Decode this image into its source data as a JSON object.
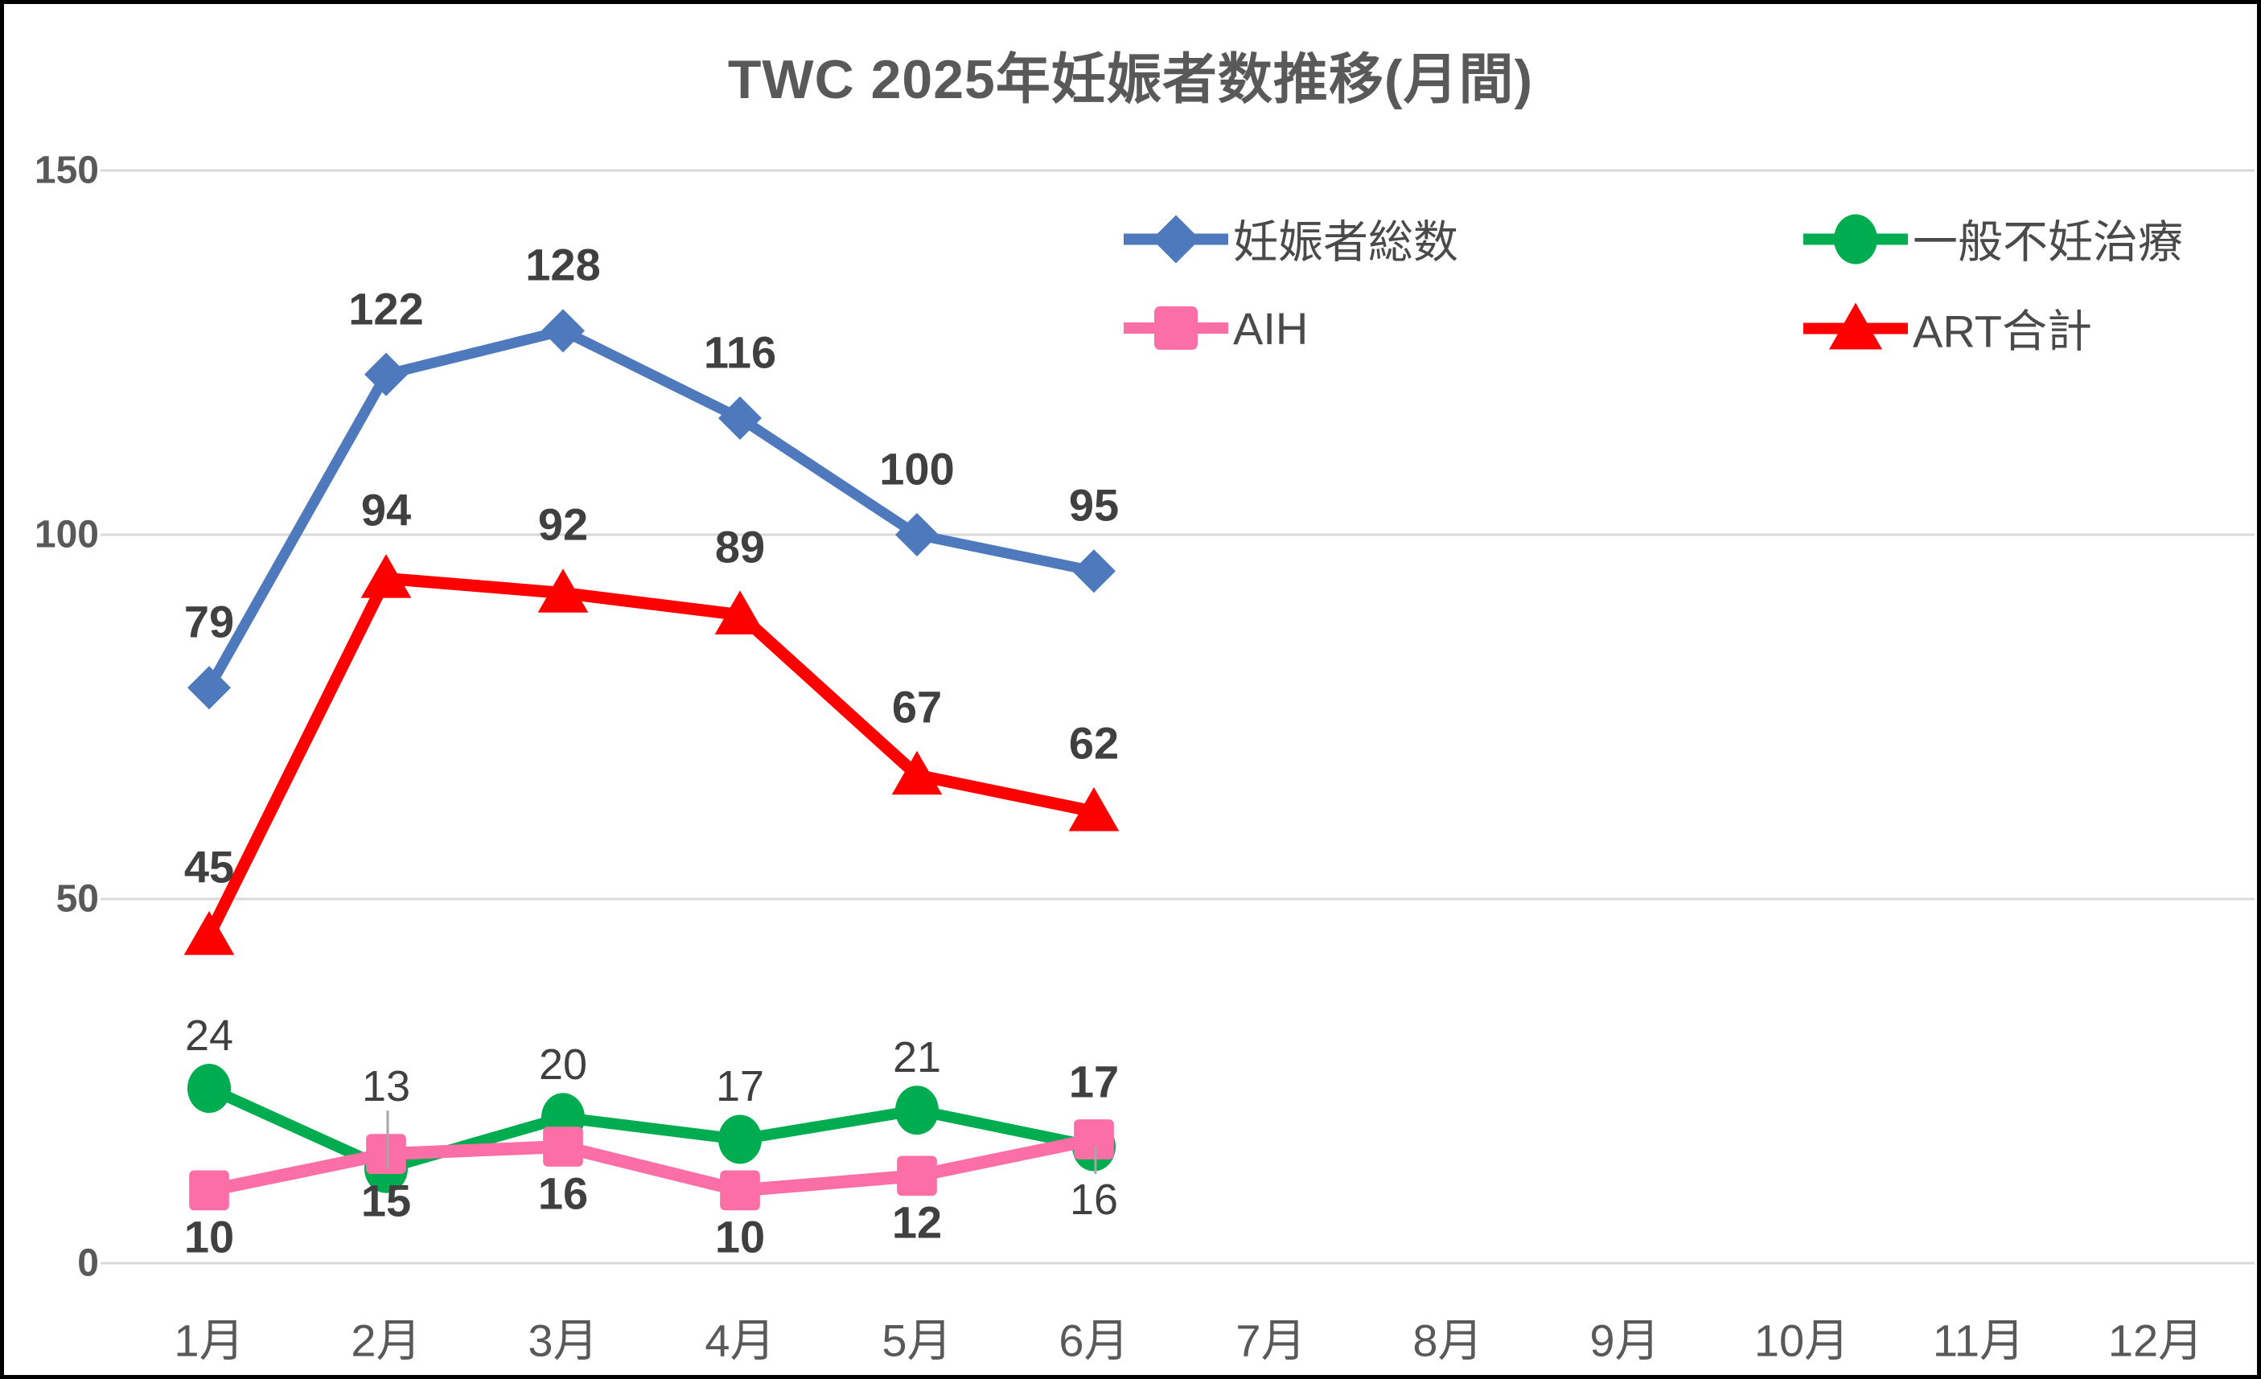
{
  "title": "TWC 2025年妊娠者数推移(月間)",
  "colors": {
    "background": "#FFFFFF",
    "border": "#000000",
    "title_text": "#595959",
    "axis_text": "#595959",
    "data_label_text": "#404040",
    "gridline": "#D9D9D9",
    "leader_line": "#A6A6A6"
  },
  "chart_data": {
    "type": "line",
    "title": "TWC 2025年妊娠者数推移(月間)",
    "categories": [
      "1月",
      "2月",
      "3月",
      "4月",
      "5月",
      "6月",
      "7月",
      "8月",
      "9月",
      "10月",
      "11月",
      "12月"
    ],
    "ylim": [
      0,
      150
    ],
    "yticks": [
      0,
      50,
      100,
      150
    ],
    "grid": true,
    "legend_position": "inside-top-right-two-columns",
    "series": [
      {
        "key": "total",
        "name": "妊娠者総数",
        "color": "#4E79BD",
        "marker": "diamond",
        "label_weight": "bold",
        "label_default_pos": "above",
        "values": [
          79,
          122,
          128,
          116,
          100,
          95
        ]
      },
      {
        "key": "general",
        "name": "一般不妊治療",
        "color": "#00AC50",
        "marker": "circle",
        "label_weight": "normal",
        "label_default_pos": "above",
        "values": [
          24,
          13,
          20,
          17,
          21,
          16
        ],
        "label_overrides": {
          "1": {
            "pos": "above",
            "far": true,
            "leader": true
          },
          "5": {
            "pos": "below",
            "leader": true
          }
        }
      },
      {
        "key": "aih",
        "name": "AIH",
        "color": "#FC6EA6",
        "marker": "square",
        "label_weight": "bold",
        "label_default_pos": "below",
        "values": [
          10,
          15,
          16,
          10,
          12,
          17
        ],
        "label_overrides": {
          "5": {
            "pos": "above"
          }
        }
      },
      {
        "key": "art",
        "name": "ART合計",
        "color": "#FE0000",
        "marker": "triangle",
        "label_weight": "bold",
        "label_default_pos": "above",
        "values": [
          45,
          94,
          92,
          89,
          67,
          62
        ]
      }
    ]
  },
  "legend": {
    "items": [
      {
        "series": 0,
        "col": 0,
        "row": 0
      },
      {
        "series": 1,
        "col": 1,
        "row": 0
      },
      {
        "series": 2,
        "col": 0,
        "row": 1
      },
      {
        "series": 3,
        "col": 1,
        "row": 1
      }
    ]
  }
}
